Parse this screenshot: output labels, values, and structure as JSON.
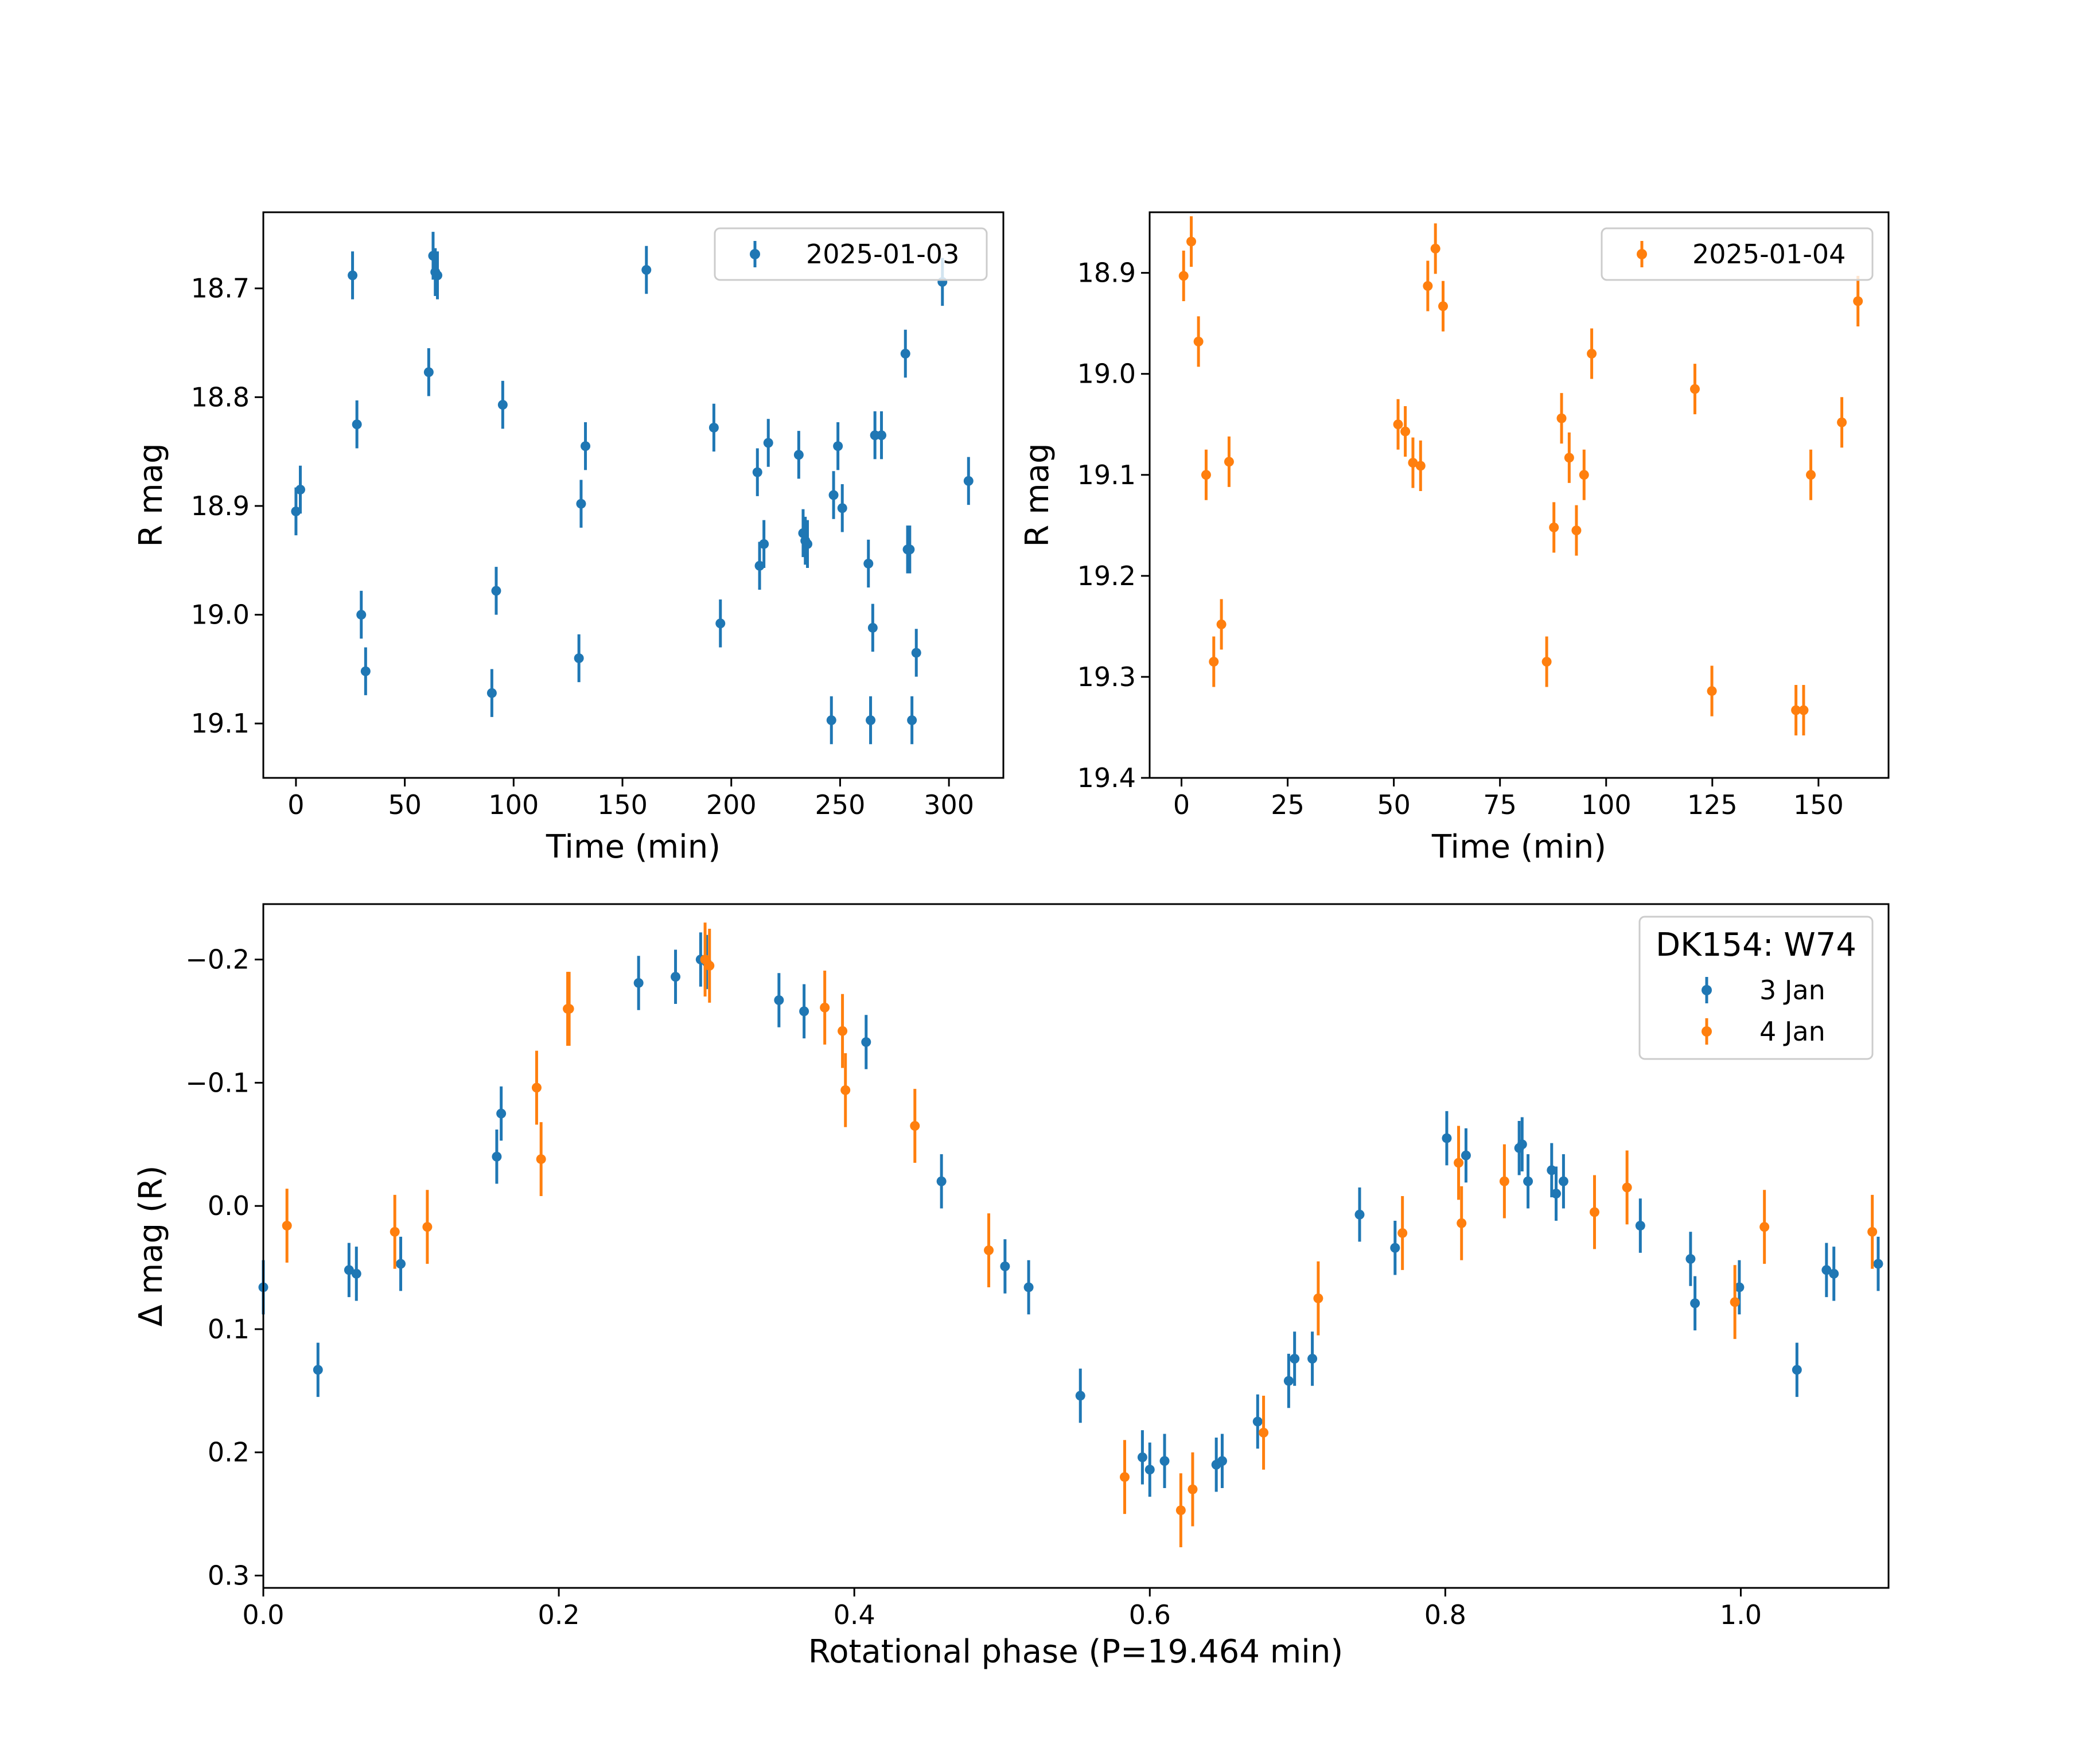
{
  "colors": {
    "series_blue": "#1f77b4",
    "series_orange": "#ff7f0e",
    "axes": "#000000",
    "legend_border": "#cccccc",
    "background": "#ffffff"
  },
  "chart_data": [
    {
      "type": "scatter",
      "id": "top-left",
      "xlabel": "Time (min)",
      "ylabel": "R mag",
      "xlim": [
        -15,
        325
      ],
      "ylim": [
        18.63,
        19.15
      ],
      "y_inverted": true,
      "xticks": [
        0,
        50,
        100,
        150,
        200,
        250,
        300
      ],
      "xtick_labels": [
        "0",
        "50",
        "100",
        "150",
        "200",
        "250",
        "300"
      ],
      "yticks": [
        18.7,
        18.8,
        18.9,
        19.0,
        19.1
      ],
      "ytick_labels": [
        "18.7",
        "18.8",
        "18.9",
        "19.0",
        "19.1"
      ],
      "legend_position": "upper-right",
      "series": [
        {
          "name": "2025-01-03",
          "color": "#1f77b4",
          "x": [
            0,
            2,
            26,
            28,
            30,
            32,
            61,
            63,
            64,
            65,
            90,
            92,
            95,
            130,
            131,
            133,
            161,
            192,
            195,
            212,
            213,
            215,
            217,
            231,
            233,
            234,
            235,
            246,
            247,
            249,
            251,
            263,
            264,
            265,
            266,
            269,
            280,
            281,
            282,
            283,
            285,
            297,
            309
          ],
          "y": [
            18.905,
            18.885,
            18.688,
            18.825,
            19.0,
            19.052,
            18.777,
            18.67,
            18.685,
            18.688,
            19.072,
            18.978,
            18.807,
            19.04,
            18.898,
            18.845,
            18.683,
            18.828,
            19.008,
            18.869,
            18.955,
            18.935,
            18.842,
            18.853,
            18.925,
            18.932,
            18.935,
            19.097,
            18.89,
            18.845,
            18.902,
            18.953,
            19.097,
            19.012,
            18.835,
            18.835,
            18.76,
            18.94,
            18.94,
            19.097,
            19.035,
            18.694,
            18.877
          ],
          "yerr": 0.022
        }
      ]
    },
    {
      "type": "scatter",
      "id": "top-right",
      "xlabel": "Time (min)",
      "ylabel": "R mag",
      "xlim": [
        -7.5,
        166.5
      ],
      "ylim": [
        18.84,
        19.4
      ],
      "y_inverted": true,
      "xticks": [
        0,
        25,
        50,
        75,
        100,
        125,
        150
      ],
      "xtick_labels": [
        "0",
        "25",
        "50",
        "75",
        "100",
        "125",
        "150"
      ],
      "yticks": [
        18.9,
        19.0,
        19.1,
        19.2,
        19.3,
        19.4
      ],
      "ytick_labels": [
        "18.9",
        "19.0",
        "19.1",
        "19.2",
        "19.3",
        "19.4"
      ],
      "legend_position": "upper-right",
      "series": [
        {
          "name": "2025-01-04",
          "color": "#ff7f0e",
          "x": [
            0.5,
            2.3,
            4,
            5.8,
            7.6,
            9.4,
            11.2,
            51,
            52.7,
            54.5,
            56.3,
            58,
            59.8,
            61.6,
            86,
            87.7,
            89.5,
            91.3,
            93,
            94.8,
            96.6,
            120.9,
            124.9,
            144.7,
            146.5,
            148.2,
            155.5,
            159.3
          ],
          "y": [
            18.903,
            18.869,
            18.968,
            19.1,
            19.285,
            19.248,
            19.087,
            19.05,
            19.057,
            19.088,
            19.091,
            18.913,
            18.876,
            18.933,
            19.285,
            19.152,
            19.044,
            19.083,
            19.155,
            19.1,
            18.98,
            19.015,
            19.314,
            19.333,
            19.333,
            19.1,
            19.048,
            18.928
          ],
          "yerr": 0.025
        }
      ]
    },
    {
      "type": "scatter",
      "id": "bottom",
      "xlabel": "Rotational phase (P=19.464 min)",
      "ylabel": "Δ mag (R)",
      "xlim": [
        0.0,
        1.1
      ],
      "ylim": [
        -0.245,
        0.31
      ],
      "y_inverted": true,
      "xticks": [
        0.0,
        0.2,
        0.4,
        0.6,
        0.8,
        1.0
      ],
      "xtick_labels": [
        "0.0",
        "0.2",
        "0.4",
        "0.6",
        "0.8",
        "1.0"
      ],
      "yticks": [
        -0.2,
        -0.1,
        0.0,
        0.1,
        0.2,
        0.3
      ],
      "ytick_labels": [
        "−0.2",
        "−0.1",
        "0.0",
        "0.1",
        "0.2",
        "0.3"
      ],
      "legend_title": "DK154: W74",
      "legend_position": "upper-right",
      "series": [
        {
          "name": "3 Jan",
          "color": "#1f77b4",
          "x": [
            0.0,
            0.037,
            0.058,
            0.063,
            0.093,
            0.158,
            0.161,
            0.254,
            0.279,
            0.296,
            0.3,
            0.349,
            0.366,
            0.408,
            0.459,
            0.502,
            0.518,
            0.553,
            0.595,
            0.6,
            0.61,
            0.645,
            0.649,
            0.673,
            0.694,
            0.698,
            0.71,
            0.742,
            0.766,
            0.801,
            0.814,
            0.85,
            0.852,
            0.856,
            0.872,
            0.875,
            0.88,
            0.932,
            0.966,
            0.969,
            0.999,
            1.038,
            1.058,
            1.063,
            1.093
          ],
          "y": [
            0.066,
            0.133,
            0.052,
            0.055,
            0.047,
            -0.04,
            -0.075,
            -0.181,
            -0.186,
            -0.2,
            -0.198,
            -0.167,
            -0.158,
            -0.133,
            -0.02,
            0.049,
            0.066,
            0.154,
            0.204,
            0.214,
            0.207,
            0.21,
            0.207,
            0.175,
            0.142,
            0.124,
            0.124,
            0.007,
            0.034,
            -0.055,
            -0.041,
            -0.047,
            -0.05,
            -0.02,
            -0.029,
            -0.01,
            -0.02,
            0.016,
            0.043,
            0.079,
            0.066,
            0.133,
            0.052,
            0.055,
            0.047
          ],
          "yerr": 0.022
        },
        {
          "name": "4 Jan",
          "color": "#ff7f0e",
          "x": [
            0.016,
            0.089,
            0.111,
            0.185,
            0.188,
            0.206,
            0.207,
            0.299,
            0.302,
            0.38,
            0.392,
            0.394,
            0.441,
            0.491,
            0.583,
            0.621,
            0.629,
            0.677,
            0.714,
            0.771,
            0.809,
            0.811,
            0.84,
            0.901,
            0.923,
            0.996,
            1.016,
            1.089
          ],
          "y": [
            0.016,
            0.021,
            0.017,
            -0.096,
            -0.038,
            -0.16,
            -0.16,
            -0.2,
            -0.195,
            -0.161,
            -0.142,
            -0.094,
            -0.065,
            0.036,
            0.22,
            0.247,
            0.23,
            0.184,
            0.075,
            0.022,
            -0.035,
            0.014,
            -0.02,
            0.005,
            -0.015,
            0.078,
            0.017,
            0.021
          ],
          "yerr": 0.03
        }
      ]
    }
  ]
}
